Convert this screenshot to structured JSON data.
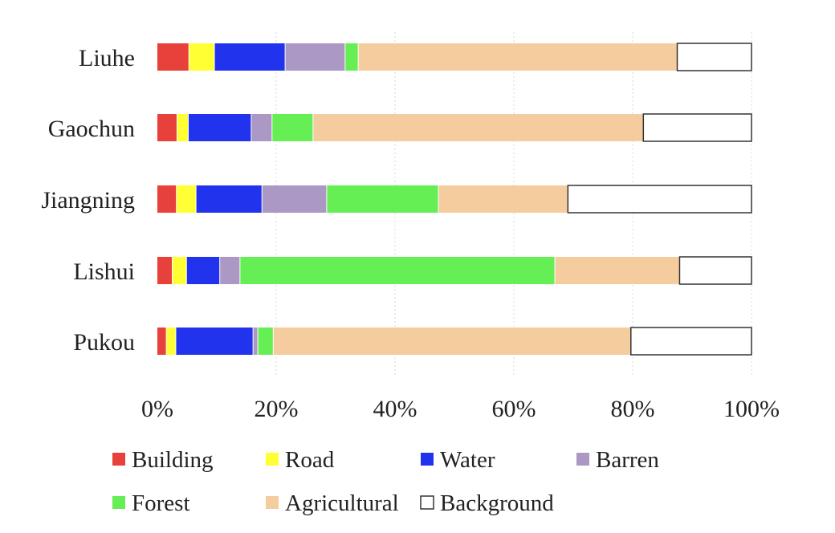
{
  "chart_data": {
    "type": "bar",
    "orientation": "horizontal",
    "stacked": true,
    "title": "",
    "xlabel": "",
    "ylabel": "",
    "xlim": [
      0,
      100
    ],
    "x_ticks": [
      "0%",
      "20%",
      "40%",
      "60%",
      "80%",
      "100%"
    ],
    "grid": "vertical dotted",
    "legend_position": "bottom",
    "categories": [
      "Liuhe",
      "Gaochun",
      "Jiangning",
      "Lishui",
      "Pukou"
    ],
    "series": [
      {
        "name": "Building",
        "color": "#e8403a",
        "values": [
          5.3,
          3.3,
          3.2,
          2.5,
          1.5
        ]
      },
      {
        "name": "Road",
        "color": "#ffff33",
        "values": [
          4.3,
          1.9,
          3.3,
          2.4,
          1.6
        ]
      },
      {
        "name": "Water",
        "color": "#2233ee",
        "values": [
          11.9,
          10.6,
          11.1,
          5.6,
          13.0
        ]
      },
      {
        "name": "Barren",
        "color": "#ab98c4",
        "values": [
          10.1,
          3.5,
          10.9,
          3.4,
          0.8
        ]
      },
      {
        "name": "Forest",
        "color": "#66ee55",
        "values": [
          2.2,
          6.9,
          18.8,
          53.0,
          2.6
        ]
      },
      {
        "name": "Agricultural",
        "color": "#f5cc9e",
        "values": [
          53.7,
          55.6,
          21.8,
          21.0,
          60.2
        ]
      },
      {
        "name": "Background",
        "color": "#ffffff",
        "values": [
          12.5,
          18.2,
          30.9,
          12.1,
          20.3
        ]
      }
    ]
  }
}
